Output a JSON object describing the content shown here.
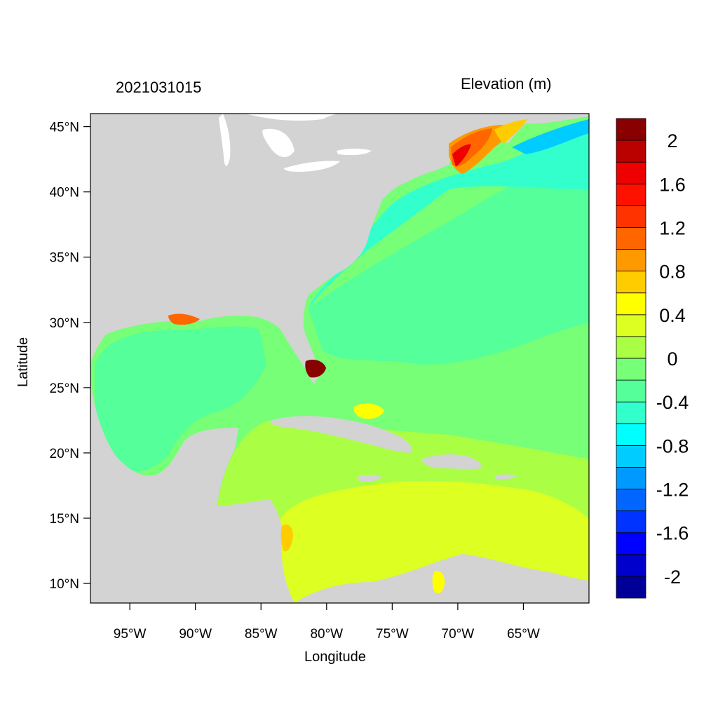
{
  "map": {
    "date_label": "2021031015",
    "variable_label": "Elevation (m)",
    "xaxis_title": "Longitude",
    "yaxis_title": "Latitude",
    "lon_range": [
      -98,
      -60
    ],
    "lat_range": [
      8.5,
      46
    ],
    "lon_ticks": [
      {
        "value": -95,
        "label": "95°W"
      },
      {
        "value": -90,
        "label": "90°W"
      },
      {
        "value": -85,
        "label": "85°W"
      },
      {
        "value": -80,
        "label": "80°W"
      },
      {
        "value": -75,
        "label": "75°W"
      },
      {
        "value": -70,
        "label": "70°W"
      },
      {
        "value": -65,
        "label": "65°W"
      }
    ],
    "lat_ticks": [
      {
        "value": 45,
        "label": "45°N"
      },
      {
        "value": 40,
        "label": "40°N"
      },
      {
        "value": 35,
        "label": "35°N"
      },
      {
        "value": 30,
        "label": "30°N"
      },
      {
        "value": 25,
        "label": "25°N"
      },
      {
        "value": 20,
        "label": "20°N"
      },
      {
        "value": 15,
        "label": "15°N"
      },
      {
        "value": 10,
        "label": "10°N"
      }
    ],
    "colors": {
      "land": "#d3d3d3",
      "lakes": "#ffffff",
      "frame": "#000000"
    }
  },
  "colorbar": {
    "levels": [
      {
        "color": "#000099"
      },
      {
        "color": "#0000cc"
      },
      {
        "color": "#0000ff"
      },
      {
        "color": "#0033ff"
      },
      {
        "color": "#0066ff"
      },
      {
        "color": "#0099ff"
      },
      {
        "color": "#00ccff"
      },
      {
        "color": "#00ffff"
      },
      {
        "color": "#33ffcc"
      },
      {
        "color": "#55ff99"
      },
      {
        "color": "#77ff77"
      },
      {
        "color": "#aaff44"
      },
      {
        "color": "#ddff22"
      },
      {
        "color": "#ffff00"
      },
      {
        "color": "#ffcc00"
      },
      {
        "color": "#ff9900"
      },
      {
        "color": "#ff6600"
      },
      {
        "color": "#ff3300"
      },
      {
        "color": "#ff1100"
      },
      {
        "color": "#ee0000"
      },
      {
        "color": "#bb0000"
      },
      {
        "color": "#880000"
      }
    ],
    "labels": [
      {
        "text": "-2",
        "index": 1
      },
      {
        "text": "-1.6",
        "index": 3
      },
      {
        "text": "-1.2",
        "index": 5
      },
      {
        "text": "-0.8",
        "index": 7
      },
      {
        "text": "-0.4",
        "index": 9
      },
      {
        "text": "0",
        "index": 11
      },
      {
        "text": "0.4",
        "index": 13
      },
      {
        "text": "0.8",
        "index": 15
      },
      {
        "text": "1.2",
        "index": 17
      },
      {
        "text": "1.6",
        "index": 19
      },
      {
        "text": "2",
        "index": 21
      }
    ]
  }
}
